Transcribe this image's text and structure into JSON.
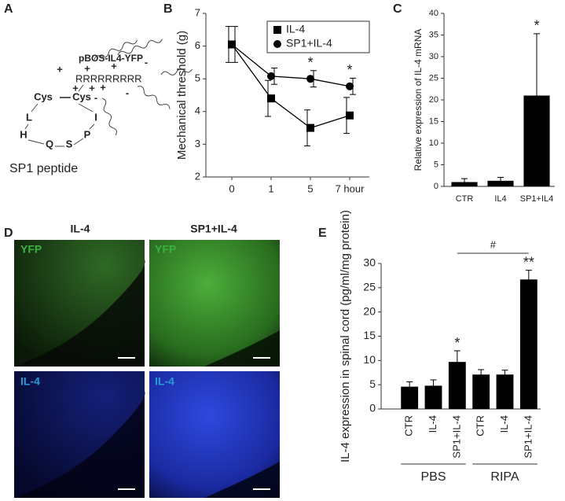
{
  "panel_labels": [
    "A",
    "B",
    "C",
    "D",
    "E"
  ],
  "diagram": {
    "construct": "pBOS-IL4-YFP",
    "arginines": "RRRRRRRRR",
    "residues": [
      "Cys",
      "Cys",
      "I",
      "P",
      "S",
      "Q",
      "H",
      "L"
    ],
    "charges": [
      "+",
      "+",
      "+",
      "+",
      "+",
      "+",
      "-",
      "-",
      "-"
    ],
    "caption": "SP1 peptide"
  },
  "micrographs": {
    "columns": [
      "IL-4",
      "SP1+IL-4"
    ],
    "rows": [
      "YFP",
      "IL-4"
    ]
  },
  "chart_data": [
    {
      "type": "line",
      "ylabel": "Mechanical threshold (g)",
      "categories": [
        "0",
        "1",
        "5",
        "7 hour"
      ],
      "ylim": [
        2,
        7
      ],
      "yticks": [
        2,
        3,
        4,
        5,
        6,
        7
      ],
      "legend": "upper-right",
      "series": [
        {
          "name": "IL-4",
          "marker": "square",
          "color": "#000000",
          "values": [
            6.05,
            4.4,
            3.5,
            3.88
          ],
          "errors": [
            0.55,
            0.55,
            0.55,
            0.55
          ],
          "annotations": [
            null,
            null,
            null,
            null
          ]
        },
        {
          "name": "SP1+IL-4",
          "marker": "circle",
          "color": "#000000",
          "values": [
            6.05,
            5.08,
            5.0,
            4.77
          ],
          "errors": [
            0.55,
            0.25,
            0.25,
            0.25
          ],
          "annotations": [
            null,
            null,
            "*",
            "*"
          ]
        }
      ]
    },
    {
      "type": "bar",
      "ylabel": "Relative expression of IL-4 mRNA",
      "categories": [
        "CTR",
        "IL4",
        "SP1+IL4"
      ],
      "ylim": [
        0,
        40
      ],
      "yticks": [
        0,
        5,
        10,
        15,
        20,
        25,
        30,
        35,
        40
      ],
      "series": [
        {
          "color": "#000000",
          "values": [
            1.0,
            1.3,
            21.0
          ],
          "errors": [
            0.8,
            0.8,
            14.3
          ],
          "annotations": [
            null,
            null,
            "*"
          ]
        }
      ]
    },
    {
      "type": "bar",
      "ylabel": "IL-4 expression in spinal cord (pg/ml/mg protein)",
      "categories": [
        "CTR",
        "IL-4",
        "SP1+IL-4",
        "CTR",
        "IL-4",
        "SP1+IL-4"
      ],
      "groups": [
        "PBS",
        "RIPA"
      ],
      "bracket_label": "#",
      "ylim": [
        0,
        30
      ],
      "yticks": [
        0,
        5,
        10,
        15,
        20,
        25,
        30
      ],
      "series": [
        {
          "color": "#000000",
          "values": [
            4.6,
            4.8,
            9.7,
            7.1,
            7.1,
            26.7
          ],
          "errors": [
            1.0,
            1.2,
            2.3,
            1.0,
            0.9,
            1.9
          ],
          "annotations": [
            null,
            null,
            "*",
            null,
            null,
            "**"
          ]
        }
      ]
    }
  ]
}
